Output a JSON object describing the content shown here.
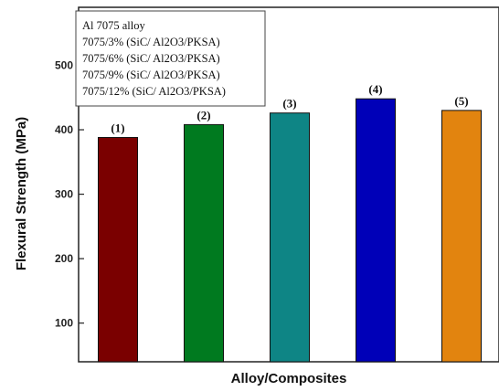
{
  "chart_data": {
    "type": "bar",
    "categories": [
      "(1)",
      "(2)",
      "(3)",
      "(4)",
      "(5)"
    ],
    "values": [
      388,
      408,
      426,
      448,
      430
    ],
    "colors": [
      "#7a0000",
      "#007a1f",
      "#0e8585",
      "#0000b8",
      "#e2840f"
    ],
    "xlabel": "Alloy/Composites",
    "ylabel": "Flexural Strength (MPa)",
    "ylim": [
      40,
      590
    ],
    "yticks": [
      100,
      200,
      300,
      400,
      500
    ],
    "legend": {
      "placement": "top-left",
      "entries": [
        "Al 7075 alloy",
        "7075/3% (SiC/ Al2O3/PKSA)",
        "7075/6% (SiC/ Al2O3/PKSA)",
        "7075/9% (SiC/ Al2O3/PKSA)",
        "7075/12% (SiC/ Al2O3/PKSA)"
      ]
    }
  }
}
